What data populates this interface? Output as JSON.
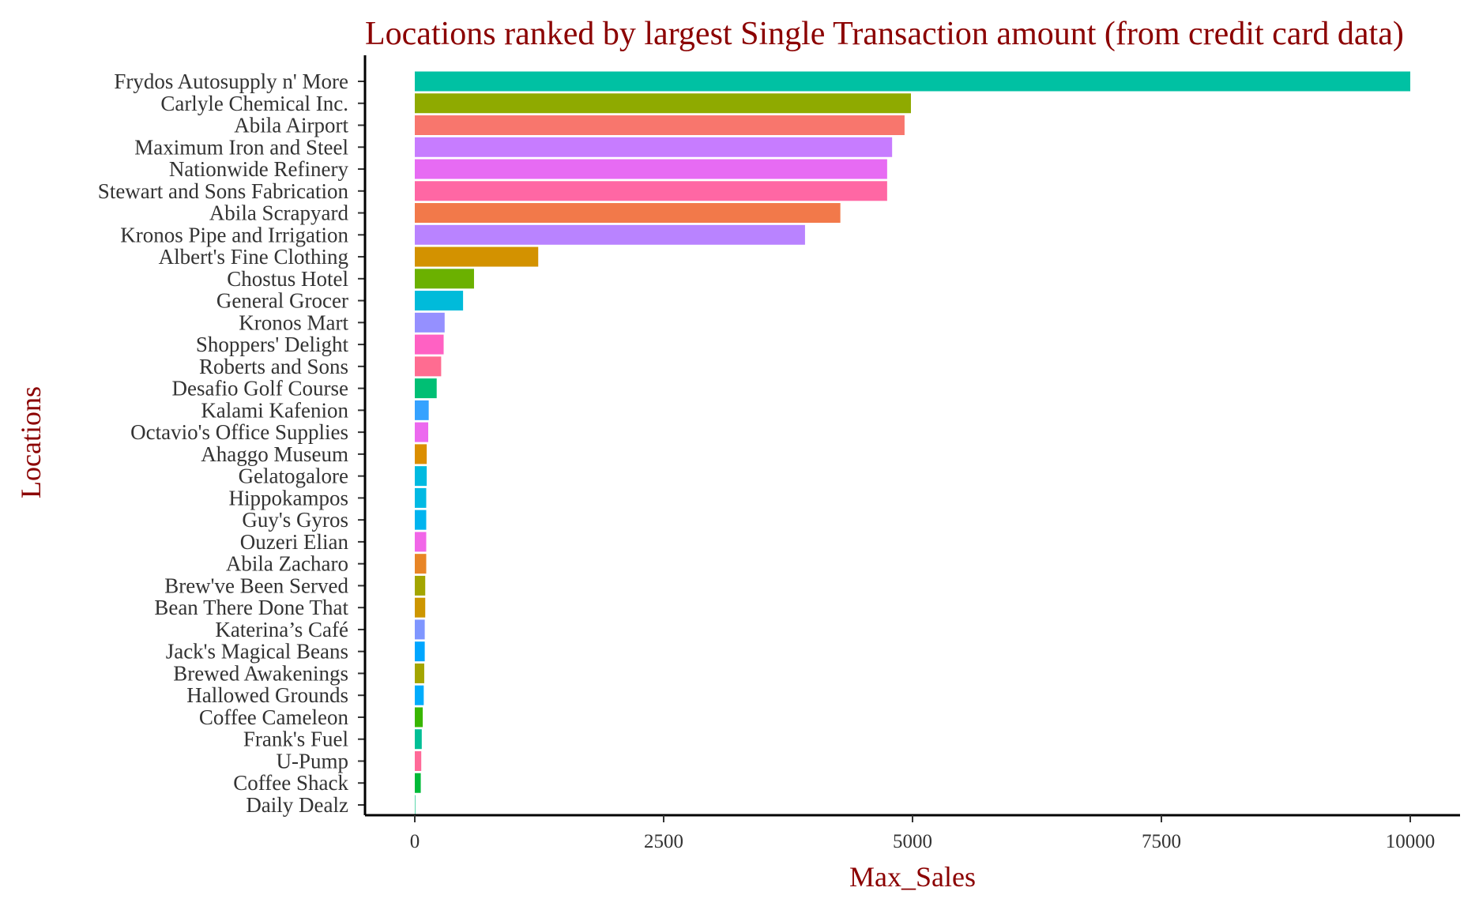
{
  "chart_data": {
    "type": "bar",
    "orientation": "horizontal",
    "title": "Locations ranked by largest Single Transaction amount (from credit card data)",
    "xlabel": "Max_Sales",
    "ylabel": "Locations",
    "xlim": [
      -500,
      10500
    ],
    "x_ticks": [
      0,
      2500,
      5000,
      7500,
      10000
    ],
    "x_tick_labels": [
      "0",
      "2500",
      "5000",
      "7500",
      "10000"
    ],
    "grid": false,
    "legend": "none",
    "categories": [
      "Frydos Autosupply n' More",
      "Carlyle Chemical Inc.",
      "Abila Airport",
      "Maximum Iron and Steel",
      "Nationwide Refinery",
      "Stewart and Sons Fabrication",
      "Abila Scrapyard",
      "Kronos Pipe and Irrigation",
      "Albert's Fine Clothing",
      "Chostus Hotel",
      "General Grocer",
      "Kronos Mart",
      "Shoppers' Delight",
      "Roberts and Sons",
      "Desafio Golf Course",
      "Kalami Kafenion",
      "Octavio's Office Supplies",
      "Ahaggo Museum",
      "Gelatogalore",
      "Hippokampos",
      "Guy's Gyros",
      "Ouzeri Elian",
      "Abila Zacharo",
      "Brew've Been Served",
      "Bean There Done That",
      "Katerina’s Café",
      "Jack's Magical Beans",
      "Brewed Awakenings",
      "Hallowed Grounds",
      "Coffee Cameleon",
      "Frank's Fuel",
      "U-Pump",
      "Coffee Shack",
      "Daily Dealz"
    ],
    "values": [
      10000,
      4984,
      4920,
      4795,
      4745,
      4745,
      4275,
      3920,
      1240,
      595,
      485,
      300,
      290,
      265,
      220,
      140,
      135,
      120,
      120,
      115,
      115,
      115,
      115,
      105,
      105,
      100,
      100,
      95,
      90,
      80,
      70,
      65,
      60,
      5
    ],
    "colors": [
      "#00C1A3",
      "#8FAA00",
      "#F8766D",
      "#C77CFF",
      "#E76BF3",
      "#FF67A4",
      "#F2794A",
      "#B983FF",
      "#D39200",
      "#6BB100",
      "#00BBDA",
      "#9590FF",
      "#FF61C3",
      "#FF6C91",
      "#00BF74",
      "#35A2FF",
      "#EC69EF",
      "#DB8E00",
      "#00BAE0",
      "#00B9E3",
      "#00B4EF",
      "#F166E8",
      "#E88526",
      "#A3A500",
      "#CD9600",
      "#7F96FF",
      "#00A6FF",
      "#A3A500",
      "#00ACFC",
      "#39B600",
      "#00BF96",
      "#FF6A98",
      "#00BA38",
      "#00BF7D"
    ]
  }
}
